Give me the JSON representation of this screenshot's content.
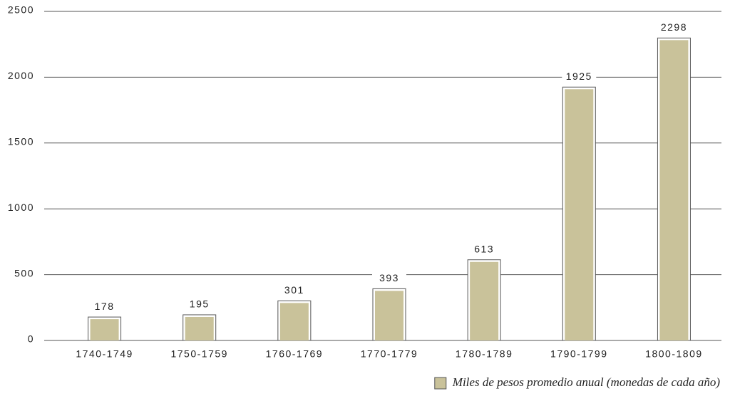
{
  "chart_data": {
    "type": "bar",
    "categories": [
      "1740-1749",
      "1750-1759",
      "1760-1769",
      "1770-1779",
      "1780-1789",
      "1790-1799",
      "1800-1809"
    ],
    "series": [
      {
        "name": "Miles de pesos promedio anual (monedas de cada año)",
        "color": "#c9c29a",
        "values": [
          178,
          195,
          301,
          393,
          613,
          1925,
          2298
        ]
      }
    ],
    "ylim": [
      0,
      2500
    ],
    "yticks": [
      0,
      500,
      1000,
      1500,
      2000,
      2500
    ],
    "grid": true,
    "legend": "bottom-right"
  }
}
